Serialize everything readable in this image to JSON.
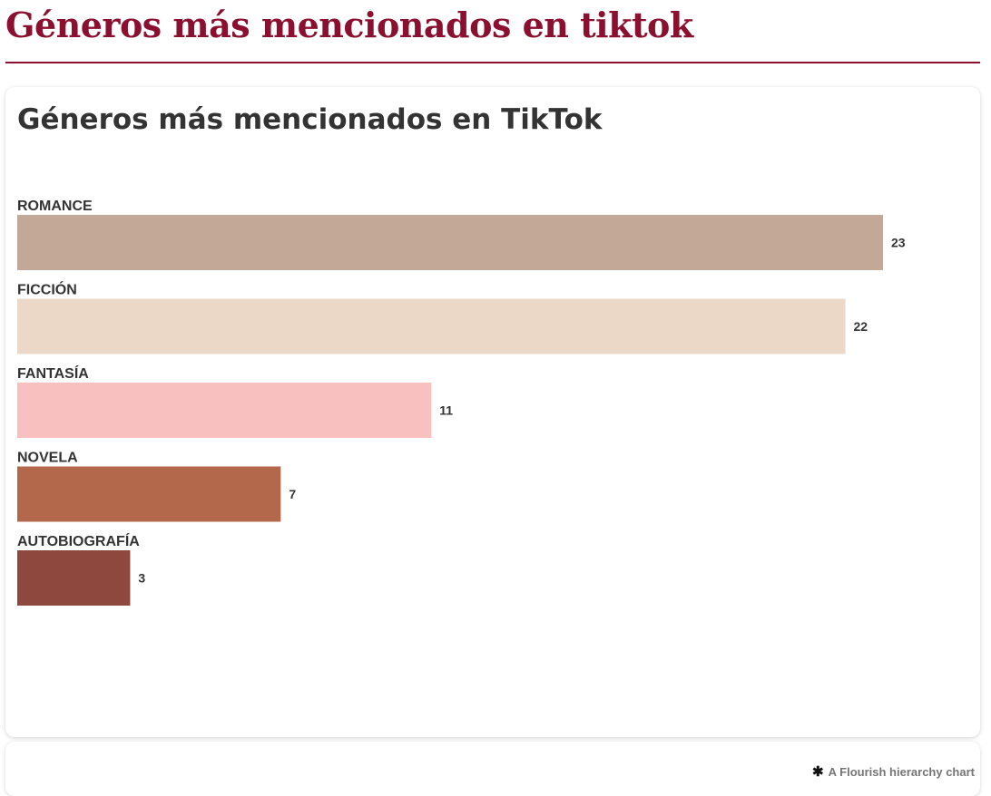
{
  "page": {
    "title": "Géneros más mencionados en tiktok",
    "title_color": "#8b0f2e",
    "rule_color": "#8b0f2e"
  },
  "credit": {
    "icon": "flourish-asterisk-icon",
    "text": "A Flourish hierarchy chart"
  },
  "chart_data": {
    "type": "bar",
    "orientation": "horizontal",
    "title": "Géneros más mencionados en TikTok",
    "categories": [
      "ROMANCE",
      "FICCIÓN",
      "FANTASÍA",
      "NOVELA",
      "AUTOBIOGRAFÍA"
    ],
    "values": [
      23,
      22,
      11,
      7,
      3
    ],
    "colors": [
      "#c4a897",
      "#ebd8c6",
      "#f8c1bf",
      "#b4684b",
      "#8f483d"
    ],
    "xlim": [
      0,
      23
    ],
    "grid": false,
    "legend": "none"
  }
}
